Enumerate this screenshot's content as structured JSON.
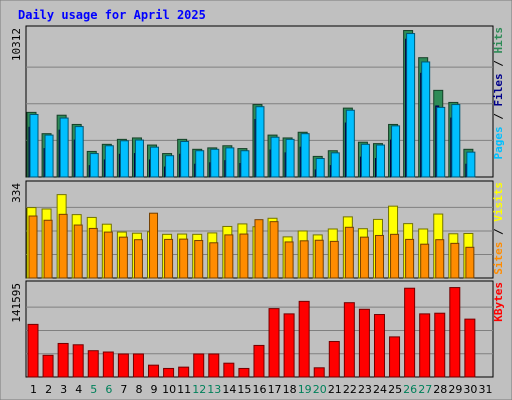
{
  "chart_data": [
    {
      "type": "bar",
      "title": "Daily usage for April 2025",
      "categories": [
        "1",
        "2",
        "3",
        "4",
        "5",
        "6",
        "7",
        "8",
        "9",
        "10",
        "11",
        "12",
        "13",
        "14",
        "15",
        "16",
        "17",
        "18",
        "19",
        "20",
        "21",
        "22",
        "23",
        "24",
        "25",
        "26",
        "27",
        "28",
        "29",
        "30",
        "31"
      ],
      "weekend_days": [
        "5",
        "6",
        "12",
        "13",
        "19",
        "20",
        "26",
        "27"
      ],
      "y_max_label": "10312",
      "ylim": [
        0,
        10312
      ],
      "series": [
        {
          "name": "Hits",
          "color": "#2e8b57",
          "values": [
            4550,
            3050,
            4350,
            3700,
            1800,
            2300,
            2650,
            2750,
            2250,
            1650,
            2650,
            1950,
            2050,
            2200,
            2000,
            5100,
            2950,
            2750,
            3150,
            1450,
            1850,
            4850,
            2450,
            2350,
            3700,
            10312,
            8400,
            6100,
            5250,
            1950,
            0
          ]
        },
        {
          "name": "Files",
          "color": "#00008b",
          "values": [
            3500,
            2000,
            3300,
            2600,
            800,
            1200,
            1600,
            1650,
            1200,
            700,
            1600,
            900,
            1000,
            1150,
            950,
            4050,
            1900,
            1700,
            2100,
            500,
            800,
            3800,
            1400,
            1300,
            2600,
            9700,
            7300,
            5000,
            4150,
            900,
            0
          ]
        },
        {
          "name": "Pages",
          "color": "#00bfff",
          "values": [
            4400,
            2950,
            4150,
            3550,
            1650,
            2200,
            2550,
            2600,
            2100,
            1500,
            2500,
            1850,
            1950,
            2050,
            1850,
            4950,
            2800,
            2650,
            3050,
            1300,
            1700,
            4700,
            2300,
            2250,
            3600,
            10100,
            8100,
            4900,
            5100,
            1750,
            0
          ]
        }
      ]
    },
    {
      "type": "bar",
      "categories": [
        "1",
        "2",
        "3",
        "4",
        "5",
        "6",
        "7",
        "8",
        "9",
        "10",
        "11",
        "12",
        "13",
        "14",
        "15",
        "16",
        "17",
        "18",
        "19",
        "20",
        "21",
        "22",
        "23",
        "24",
        "25",
        "26",
        "27",
        "28",
        "29",
        "30",
        "31"
      ],
      "y_max_label": "334",
      "ylim": [
        0,
        334
      ],
      "series": [
        {
          "name": "Visits",
          "color": "#ffff00",
          "values": [
            250,
            245,
            296,
            225,
            215,
            191,
            163,
            159,
            164,
            155,
            156,
            155,
            160,
            183,
            192,
            182,
            212,
            146,
            167,
            153,
            174,
            217,
            175,
            208,
            255,
            193,
            174,
            227,
            157,
            158,
            0
          ]
        },
        {
          "name": "Sites",
          "color": "#ff8c00",
          "values": [
            220,
            205,
            226,
            188,
            176,
            163,
            145,
            136,
            230,
            137,
            138,
            133,
            125,
            153,
            156,
            207,
            200,
            128,
            132,
            134,
            130,
            180,
            145,
            151,
            155,
            137,
            120,
            136,
            123,
            109,
            0
          ]
        }
      ]
    },
    {
      "type": "bar",
      "categories": [
        "1",
        "2",
        "3",
        "4",
        "5",
        "6",
        "7",
        "8",
        "9",
        "10",
        "11",
        "12",
        "13",
        "14",
        "15",
        "16",
        "17",
        "18",
        "19",
        "20",
        "21",
        "22",
        "23",
        "24",
        "25",
        "26",
        "27",
        "28",
        "29",
        "30",
        "31"
      ],
      "y_max_label": "141595",
      "ylim": [
        0,
        141595
      ],
      "series": [
        {
          "name": "KBytes",
          "color": "#ff0000",
          "values": [
            80000,
            33000,
            51000,
            49000,
            40000,
            38000,
            35000,
            35000,
            18000,
            13000,
            15000,
            35000,
            35000,
            21000,
            13000,
            48000,
            104000,
            96000,
            115000,
            14000,
            54000,
            113000,
            103000,
            95000,
            61000,
            135000,
            96000,
            97000,
            136000,
            88000,
            0
          ]
        }
      ]
    }
  ],
  "legend": {
    "top": [
      "Pages",
      "Files",
      "Hits"
    ],
    "middle": [
      "Sites",
      "Visits"
    ],
    "bottom": [
      "KBytes"
    ],
    "sep": "/"
  },
  "colors": {
    "background": "#c0c0c0",
    "plot_area": "#c0c0c0",
    "grid": "#808080",
    "title": "#0000ff",
    "day_label": "#000000",
    "weekend_label": "#00805a",
    "legend_sep": "#000000"
  }
}
